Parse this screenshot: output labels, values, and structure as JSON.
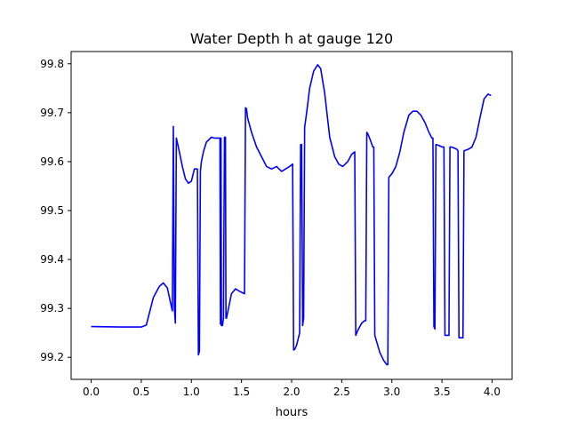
{
  "chart_data": {
    "type": "line",
    "title": "Water Depth h at gauge 120",
    "xlabel": "hours",
    "ylabel": "",
    "xlim": [
      -0.2,
      4.2
    ],
    "ylim": [
      99.155,
      99.825
    ],
    "xticks": [
      0.0,
      0.5,
      1.0,
      1.5,
      2.0,
      2.5,
      3.0,
      3.5,
      4.0
    ],
    "xtick_labels": [
      "0.0",
      "0.5",
      "1.0",
      "1.5",
      "2.0",
      "2.5",
      "3.0",
      "3.5",
      "4.0"
    ],
    "yticks": [
      99.2,
      99.3,
      99.4,
      99.5,
      99.6,
      99.7,
      99.8
    ],
    "ytick_labels": [
      "99.2",
      "99.3",
      "99.4",
      "99.5",
      "99.6",
      "99.7",
      "99.8"
    ],
    "grid": false,
    "legend": "none",
    "series": [
      {
        "color": "#0000ff",
        "x": [
          0.0,
          0.3,
          0.4,
          0.5,
          0.55,
          0.62,
          0.68,
          0.72,
          0.76,
          0.81,
          0.82,
          0.83,
          0.84,
          0.85,
          0.87,
          0.91,
          0.94,
          0.97,
          1.0,
          1.03,
          1.06,
          1.07,
          1.08,
          1.09,
          1.1,
          1.12,
          1.15,
          1.2,
          1.23,
          1.27,
          1.285,
          1.29,
          1.295,
          1.3,
          1.31,
          1.32,
          1.33,
          1.34,
          1.345,
          1.35,
          1.37,
          1.4,
          1.44,
          1.48,
          1.53,
          1.54,
          1.55,
          1.56,
          1.6,
          1.65,
          1.7,
          1.75,
          1.8,
          1.85,
          1.9,
          1.94,
          1.98,
          2.01,
          2.02,
          2.03,
          2.05,
          2.08,
          2.09,
          2.1,
          2.11,
          2.12,
          2.13,
          2.15,
          2.18,
          2.22,
          2.26,
          2.29,
          2.33,
          2.38,
          2.43,
          2.47,
          2.51,
          2.56,
          2.6,
          2.63,
          2.64,
          2.66,
          2.7,
          2.73,
          2.74,
          2.75,
          2.76,
          2.78,
          2.81,
          2.82,
          2.83,
          2.88,
          2.92,
          2.95,
          2.96,
          2.97,
          3.0,
          3.04,
          3.08,
          3.12,
          3.17,
          3.21,
          3.25,
          3.29,
          3.33,
          3.37,
          3.4,
          3.41,
          3.42,
          3.43,
          3.44,
          3.47,
          3.5,
          3.51,
          3.52,
          3.53,
          3.56,
          3.57,
          3.58,
          3.59,
          3.62,
          3.65,
          3.66,
          3.67,
          3.7,
          3.71,
          3.72,
          3.76,
          3.8,
          3.84,
          3.88,
          3.92,
          3.96,
          3.99
        ],
        "y": [
          99.263,
          99.262,
          99.262,
          99.262,
          99.266,
          99.322,
          99.345,
          99.352,
          99.342,
          99.295,
          99.672,
          99.3,
          99.27,
          99.648,
          99.63,
          99.59,
          99.565,
          99.556,
          99.56,
          99.585,
          99.585,
          99.205,
          99.212,
          99.58,
          99.6,
          99.62,
          99.64,
          99.65,
          99.648,
          99.648,
          99.648,
          99.268,
          99.648,
          99.265,
          99.265,
          99.28,
          99.65,
          99.65,
          99.28,
          99.28,
          99.3,
          99.33,
          99.34,
          99.335,
          99.33,
          99.71,
          99.708,
          99.69,
          99.66,
          99.63,
          99.61,
          99.59,
          99.585,
          99.59,
          99.58,
          99.585,
          99.59,
          99.595,
          99.215,
          99.216,
          99.225,
          99.25,
          99.635,
          99.635,
          99.265,
          99.28,
          99.67,
          99.7,
          99.75,
          99.785,
          99.798,
          99.79,
          99.74,
          99.65,
          99.61,
          99.595,
          99.59,
          99.6,
          99.615,
          99.62,
          99.245,
          99.255,
          99.27,
          99.275,
          99.275,
          99.66,
          99.657,
          99.647,
          99.63,
          99.63,
          99.245,
          99.21,
          99.193,
          99.185,
          99.185,
          99.568,
          99.575,
          99.59,
          99.62,
          99.66,
          99.695,
          99.703,
          99.703,
          99.695,
          99.68,
          99.66,
          99.648,
          99.648,
          99.263,
          99.258,
          99.635,
          99.633,
          99.63,
          99.63,
          99.63,
          99.245,
          99.245,
          99.245,
          99.63,
          99.63,
          99.628,
          99.625,
          99.622,
          99.24,
          99.24,
          99.24,
          99.622,
          99.625,
          99.63,
          99.65,
          99.69,
          99.728,
          99.738,
          99.735
        ]
      }
    ]
  }
}
